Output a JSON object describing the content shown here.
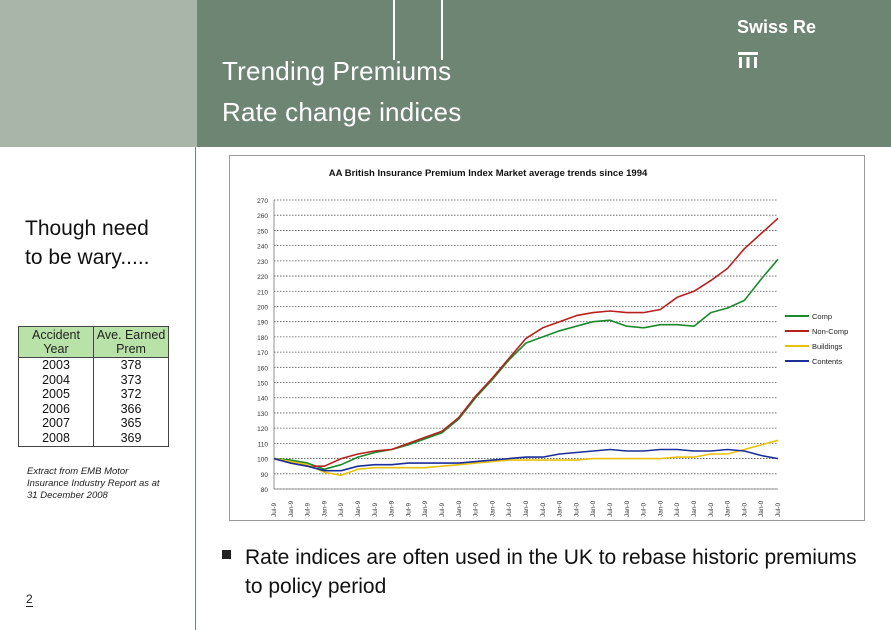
{
  "header": {
    "title_line1": "Trending Premiums",
    "title_line2": "Rate change indices",
    "brand": "Swiss Re"
  },
  "side": {
    "note": "Though need to be wary.....",
    "table_headers": [
      "Accident Year",
      "Ave. Earned Prem"
    ],
    "table_rows": [
      [
        "2003",
        "378"
      ],
      [
        "2004",
        "373"
      ],
      [
        "2005",
        "372"
      ],
      [
        "2006",
        "366"
      ],
      [
        "2007",
        "365"
      ],
      [
        "2008",
        "369"
      ]
    ],
    "source": "Extract from EMB Motor Insurance Industry Report as at 31 December 2008",
    "page_number": "2"
  },
  "bullet": {
    "text": "Rate indices are often used in the UK to rebase historic premiums to policy period"
  },
  "colors": {
    "header_left": "#a8b5a8",
    "header_right": "#6f8573",
    "table_header": "#b9e2a8"
  },
  "chart_data": {
    "type": "line",
    "title": "AA British Insurance Premium Index Market average trends since 1994",
    "xlabel": "",
    "ylabel": "",
    "ylim": [
      80,
      270
    ],
    "yticks": [
      80,
      90,
      100,
      110,
      120,
      130,
      140,
      150,
      160,
      170,
      180,
      190,
      200,
      210,
      220,
      230,
      240,
      250,
      260,
      270
    ],
    "grid": true,
    "legend_position": "right",
    "x": [
      "Jul-94",
      "Jan-95",
      "Jul-95",
      "Jan-96",
      "Jul-96",
      "Jan-97",
      "Jul-97",
      "Jan-98",
      "Jul-98",
      "Jan-99",
      "Jul-99",
      "Jan-00",
      "Jul-00",
      "Jan-01",
      "Jul-01",
      "Jan-02",
      "Jul-02",
      "Jan-03",
      "Jul-03",
      "Jan-04",
      "Jul-04",
      "Jan-05",
      "Jul-05",
      "Jan-06",
      "Jul-06",
      "Jan-07",
      "Jul-07",
      "Jan-08",
      "Jul-08",
      "Jan-09",
      "Jul-09"
    ],
    "x_tick_labels": [
      "Jul-9",
      "Jan-9",
      "Jul-9",
      "Jan-9",
      "Jul-9",
      "Jan-9",
      "Jul-9",
      "Jan-9",
      "Jul-9",
      "Jan-9",
      "Jul-9",
      "Jan-0",
      "Jul-0",
      "Jan-0",
      "Jul-0",
      "Jan-0",
      "Jul-0",
      "Jan-0",
      "Jul-0",
      "Jan-0",
      "Jul-0",
      "Jan-0",
      "Jul-0",
      "Jan-0",
      "Jul-0",
      "Jan-0",
      "Jul-0",
      "Jan-0",
      "Jul-0",
      "Jan-0",
      "Jul-0"
    ],
    "series": [
      {
        "name": "Comp",
        "color": "#1a8a2a",
        "values": [
          100,
          99,
          97,
          93,
          96,
          101,
          104,
          106,
          109,
          113,
          117,
          126,
          140,
          152,
          165,
          176,
          180,
          184,
          187,
          190,
          191,
          187,
          186,
          188,
          188,
          187,
          196,
          199,
          204,
          218,
          231
        ]
      },
      {
        "name": "Non-Comp",
        "color": "#b8201e",
        "values": [
          100,
          97,
          95,
          95,
          100,
          103,
          105,
          106,
          110,
          114,
          118,
          127,
          141,
          153,
          166,
          179,
          186,
          190,
          194,
          196,
          197,
          196,
          196,
          198,
          206,
          210,
          217,
          225,
          238,
          248,
          258
        ]
      },
      {
        "name": "Buildings",
        "color": "#e8c20a",
        "values": [
          100,
          98,
          96,
          91,
          89,
          93,
          94,
          94,
          94,
          94,
          95,
          96,
          97,
          98,
          99,
          99,
          99,
          99,
          99,
          100,
          100,
          100,
          100,
          100,
          101,
          101,
          103,
          103,
          106,
          109,
          112
        ]
      },
      {
        "name": "Contents",
        "color": "#1a2e9a",
        "values": [
          100,
          97,
          95,
          92,
          92,
          95,
          96,
          96,
          97,
          97,
          97,
          97,
          98,
          99,
          100,
          101,
          101,
          103,
          104,
          105,
          106,
          105,
          105,
          106,
          106,
          105,
          105,
          106,
          105,
          102,
          100
        ]
      }
    ]
  }
}
